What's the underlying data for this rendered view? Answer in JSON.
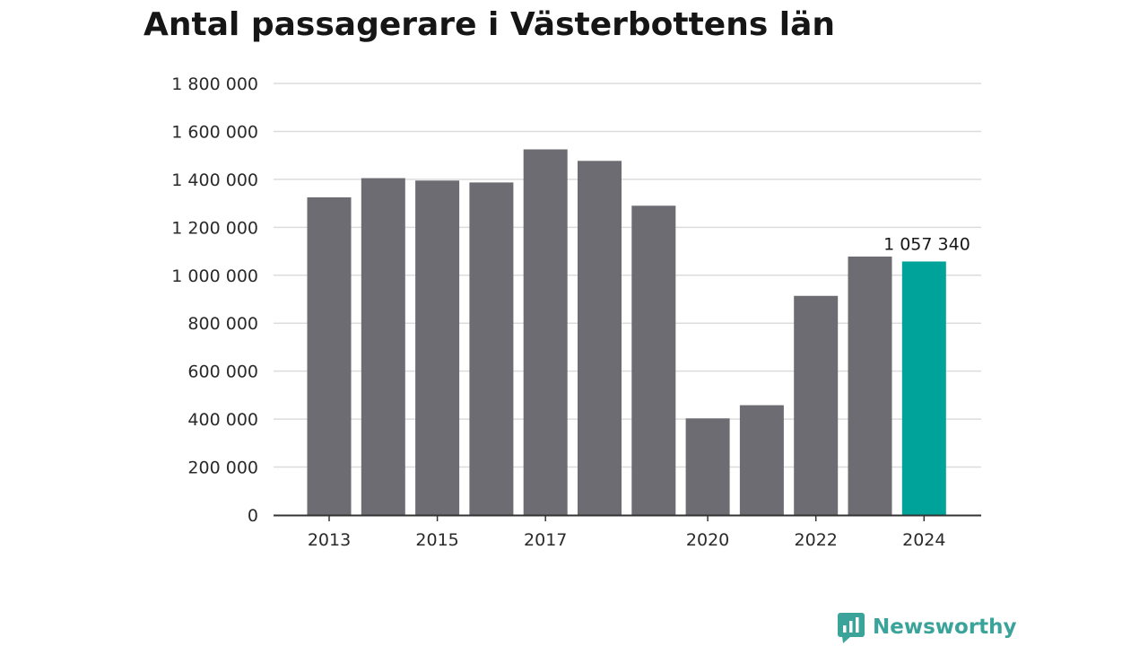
{
  "title": "Antal passagerare i Västerbottens län",
  "brand": {
    "name": "Newsworthy",
    "icon": "newsworthy-logo-icon",
    "color": "#3aa39a"
  },
  "chart_data": {
    "type": "bar",
    "title": "Antal passagerare i Västerbottens län",
    "xlabel": "",
    "ylabel": "",
    "categories": [
      "2013",
      "2014",
      "2015",
      "2016",
      "2017",
      "2018",
      "2019",
      "2020",
      "2021",
      "2022",
      "2023",
      "2024"
    ],
    "x_tick_labels": [
      "2013",
      "",
      "2015",
      "",
      "2017",
      "",
      "",
      "2020",
      "",
      "2022",
      "",
      "2024"
    ],
    "values": [
      1325000,
      1405000,
      1395000,
      1387000,
      1525000,
      1477000,
      1290000,
      403000,
      458000,
      914000,
      1078000,
      1057340
    ],
    "ylim": [
      0,
      1800000
    ],
    "y_ticks": [
      {
        "value": 0,
        "label": "0"
      },
      {
        "value": 200000,
        "label": "200 000"
      },
      {
        "value": 400000,
        "label": "400 000"
      },
      {
        "value": 600000,
        "label": "600 000"
      },
      {
        "value": 800000,
        "label": "800 000"
      },
      {
        "value": 1000000,
        "label": "1 000 000"
      },
      {
        "value": 1200000,
        "label": "1 200 000"
      },
      {
        "value": 1400000,
        "label": "1 400 000"
      },
      {
        "value": 1600000,
        "label": "1 600 000"
      },
      {
        "value": 1800000,
        "label": "1 800 000"
      }
    ],
    "grid": true,
    "highlight_index": 11,
    "data_label": "1 057 340",
    "colors": {
      "bar": "#6d6c72",
      "highlight": "#00a39a",
      "grid": "#dcdcdc",
      "axis": "#333333"
    }
  }
}
